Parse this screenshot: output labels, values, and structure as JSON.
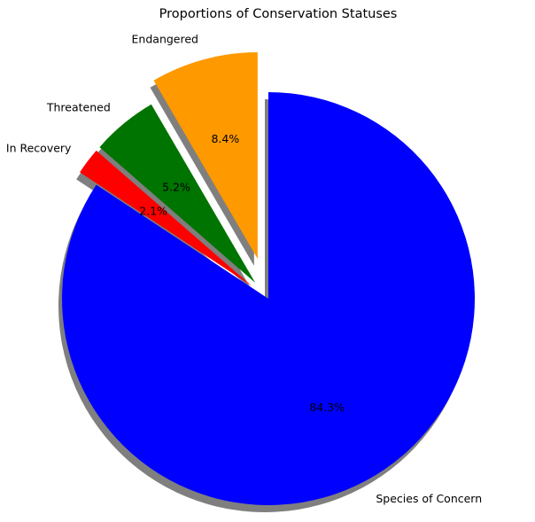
{
  "chart_data": {
    "type": "pie",
    "title": "Proportions of Conservation Statuses",
    "start_angle_deg": 90,
    "direction": "counterclockwise",
    "shadow": true,
    "slices": [
      {
        "label": "Endangered",
        "value": 8.4,
        "pct_label": "8.4%",
        "color": "#ff9900",
        "explode": 0.2
      },
      {
        "label": "Threatened",
        "value": 5.2,
        "pct_label": "5.2%",
        "color": "#007400",
        "explode": 0.1
      },
      {
        "label": "In Recovery",
        "value": 2.1,
        "pct_label": "2.1%",
        "color": "#ff0000",
        "explode": 0.1
      },
      {
        "label": "Species of Concern",
        "value": 84.3,
        "pct_label": "84.3%",
        "color": "#0000ff",
        "explode": 0
      }
    ]
  }
}
